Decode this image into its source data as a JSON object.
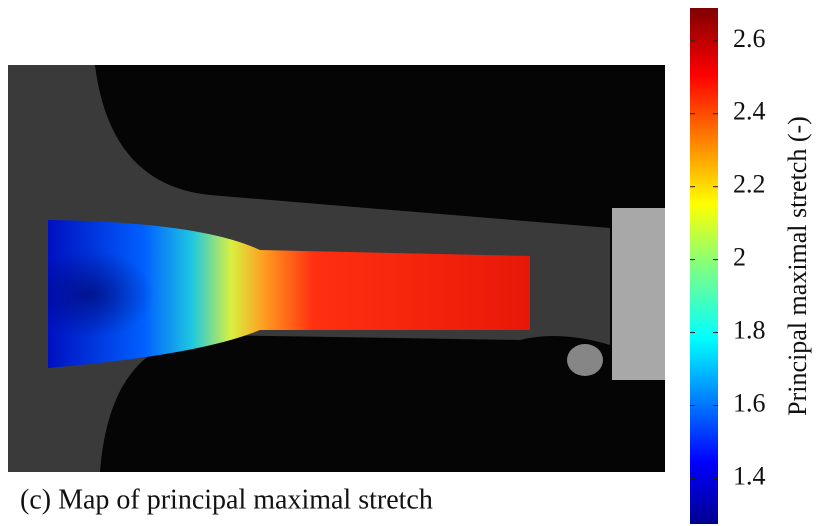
{
  "chart_data": {
    "type": "heatmap",
    "caption": "(c) Map of principal maximal stretch",
    "colorbar_label": "Principal maximal stretch (-)",
    "zlim": [
      1.275,
      2.69
    ],
    "zticks": [
      1.4,
      1.6,
      1.8,
      2,
      2.2,
      2.4,
      2.6
    ]
  }
}
